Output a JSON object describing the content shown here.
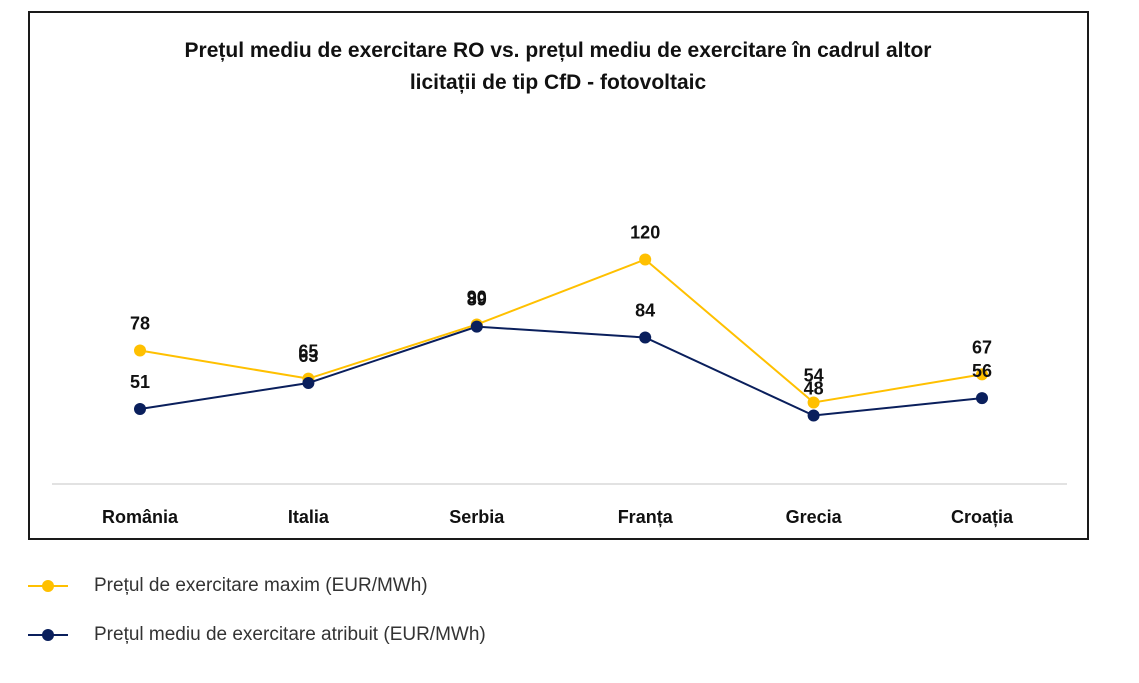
{
  "colors": {
    "max": "#FFC000",
    "avg": "#0A1F5C",
    "axis": "#D9D9D9"
  },
  "chart_data": {
    "type": "line",
    "title": [
      "Prețul mediu de exercitare RO vs. prețul mediu de exercitare în cadrul altor",
      "licitații de tip CfD - fotovoltaic"
    ],
    "categories": [
      "România",
      "Italia",
      "Serbia",
      "Franța",
      "Grecia",
      "Croația"
    ],
    "series": [
      {
        "name": "Prețul de exercitare maxim (EUR/MWh)",
        "color": "#FFC000",
        "values": [
          78,
          65,
          90,
          120,
          54,
          67
        ]
      },
      {
        "name": "Prețul mediu de exercitare atribuit (EUR/MWh)",
        "color": "#0A1F5C",
        "values": [
          51,
          63,
          89,
          84,
          48,
          56
        ]
      }
    ],
    "xlabel": "",
    "ylabel": "",
    "grid": false,
    "legend_position": "bottom-left"
  }
}
